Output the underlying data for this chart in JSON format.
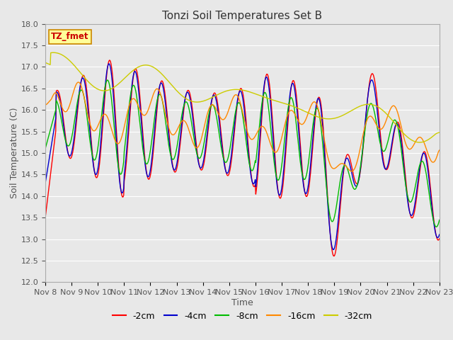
{
  "title": "Tonzi Soil Temperatures Set B",
  "xlabel": "Time",
  "ylabel": "Soil Temperature (C)",
  "ylim": [
    12.0,
    18.0
  ],
  "yticks": [
    12.0,
    12.5,
    13.0,
    13.5,
    14.0,
    14.5,
    15.0,
    15.5,
    16.0,
    16.5,
    17.0,
    17.5,
    18.0
  ],
  "xtick_labels": [
    "Nov 8",
    "Nov 9",
    "Nov 10",
    "Nov 11",
    "Nov 12",
    "Nov 13",
    "Nov 14",
    "Nov 15",
    "Nov 16",
    "Nov 17",
    "Nov 18",
    "Nov 19",
    "Nov 20",
    "Nov 21",
    "Nov 22",
    "Nov 23"
  ],
  "legend_labels": [
    "-2cm",
    "-4cm",
    "-8cm",
    "-16cm",
    "-32cm"
  ],
  "legend_colors": [
    "#ff0000",
    "#0000cd",
    "#00bb00",
    "#ff8800",
    "#cccc00"
  ],
  "line_width": 1.0,
  "bg_color": "#e8e8e8",
  "grid_color": "#ffffff",
  "annotation_text": "TZ_fmet",
  "annotation_bg": "#ffff99",
  "annotation_border": "#cc8800",
  "title_fontsize": 11,
  "axis_fontsize": 9,
  "tick_fontsize": 8
}
